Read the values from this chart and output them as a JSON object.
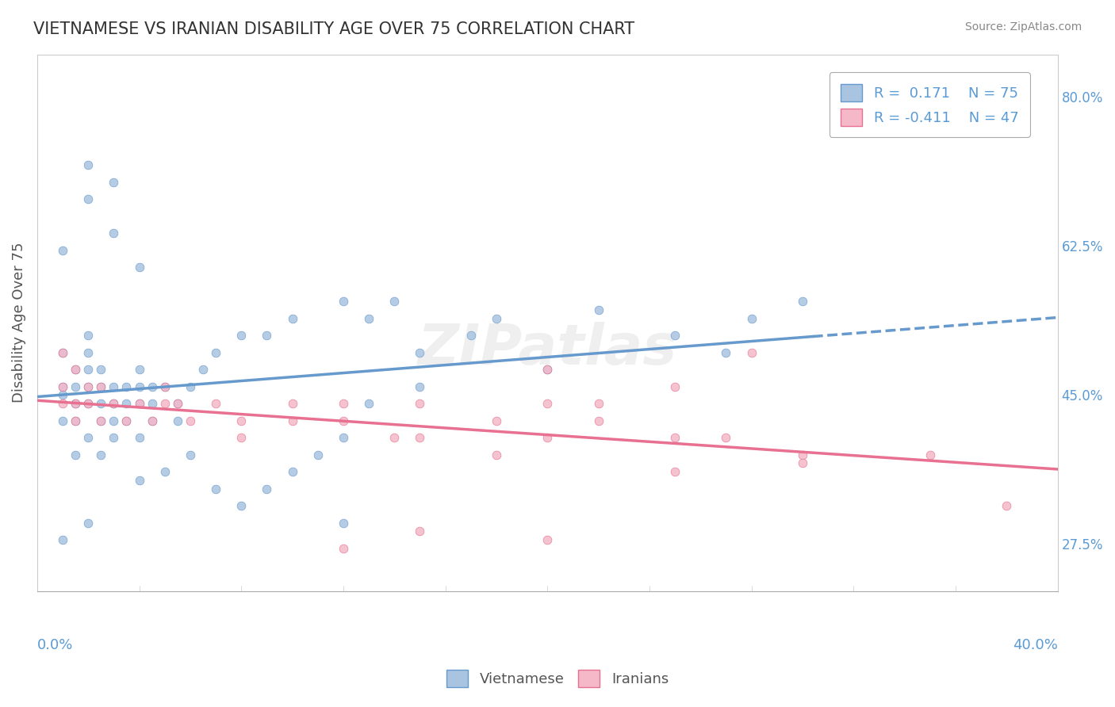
{
  "title": "VIETNAMESE VS IRANIAN DISABILITY AGE OVER 75 CORRELATION CHART",
  "source": "Source: ZipAtlas.com",
  "ylabel": "Disability Age Over 75",
  "ytick_labels": [
    "27.5%",
    "45.0%",
    "62.5%",
    "80.0%"
  ],
  "ytick_values": [
    0.275,
    0.45,
    0.625,
    0.8
  ],
  "xmin": 0.0,
  "xmax": 0.4,
  "ymin": 0.22,
  "ymax": 0.85,
  "viet_color": "#a8c4e0",
  "viet_color_dark": "#6699cc",
  "iran_color": "#f4b8c8",
  "iran_color_dark": "#e87090",
  "legend_viet_R": "0.171",
  "legend_viet_N": "75",
  "legend_iran_R": "-0.411",
  "legend_iran_N": "47",
  "viet_scatter_x": [
    0.01,
    0.01,
    0.01,
    0.01,
    0.015,
    0.015,
    0.015,
    0.015,
    0.015,
    0.02,
    0.02,
    0.02,
    0.02,
    0.02,
    0.02,
    0.025,
    0.025,
    0.025,
    0.025,
    0.025,
    0.03,
    0.03,
    0.03,
    0.03,
    0.035,
    0.035,
    0.035,
    0.04,
    0.04,
    0.04,
    0.04,
    0.045,
    0.045,
    0.045,
    0.05,
    0.055,
    0.055,
    0.06,
    0.065,
    0.07,
    0.08,
    0.09,
    0.1,
    0.12,
    0.13,
    0.14,
    0.15,
    0.17,
    0.18,
    0.22,
    0.04,
    0.05,
    0.06,
    0.07,
    0.08,
    0.09,
    0.1,
    0.11,
    0.12,
    0.13,
    0.15,
    0.2,
    0.25,
    0.28,
    0.3,
    0.27,
    0.12,
    0.02,
    0.02,
    0.03,
    0.03,
    0.04,
    0.01,
    0.01,
    0.02
  ],
  "viet_scatter_y": [
    0.45,
    0.42,
    0.46,
    0.5,
    0.44,
    0.46,
    0.48,
    0.42,
    0.38,
    0.44,
    0.46,
    0.48,
    0.5,
    0.52,
    0.4,
    0.44,
    0.46,
    0.48,
    0.42,
    0.38,
    0.44,
    0.46,
    0.42,
    0.4,
    0.46,
    0.44,
    0.42,
    0.46,
    0.48,
    0.44,
    0.4,
    0.46,
    0.44,
    0.42,
    0.46,
    0.44,
    0.42,
    0.46,
    0.48,
    0.5,
    0.52,
    0.52,
    0.54,
    0.56,
    0.54,
    0.56,
    0.5,
    0.52,
    0.54,
    0.55,
    0.35,
    0.36,
    0.38,
    0.34,
    0.32,
    0.34,
    0.36,
    0.38,
    0.4,
    0.44,
    0.46,
    0.48,
    0.52,
    0.54,
    0.56,
    0.5,
    0.3,
    0.72,
    0.68,
    0.7,
    0.64,
    0.6,
    0.62,
    0.28,
    0.3
  ],
  "iran_scatter_x": [
    0.01,
    0.01,
    0.01,
    0.015,
    0.015,
    0.015,
    0.02,
    0.02,
    0.025,
    0.025,
    0.03,
    0.035,
    0.04,
    0.045,
    0.05,
    0.055,
    0.06,
    0.07,
    0.08,
    0.1,
    0.12,
    0.14,
    0.15,
    0.18,
    0.2,
    0.22,
    0.25,
    0.27,
    0.3,
    0.2,
    0.25,
    0.28,
    0.22,
    0.05,
    0.08,
    0.1,
    0.12,
    0.15,
    0.18,
    0.2,
    0.25,
    0.3,
    0.35,
    0.38,
    0.12,
    0.15,
    0.2
  ],
  "iran_scatter_y": [
    0.5,
    0.46,
    0.44,
    0.48,
    0.44,
    0.42,
    0.46,
    0.44,
    0.46,
    0.42,
    0.44,
    0.42,
    0.44,
    0.42,
    0.46,
    0.44,
    0.42,
    0.44,
    0.42,
    0.44,
    0.42,
    0.4,
    0.44,
    0.42,
    0.44,
    0.42,
    0.4,
    0.4,
    0.38,
    0.48,
    0.46,
    0.5,
    0.44,
    0.44,
    0.4,
    0.42,
    0.44,
    0.4,
    0.38,
    0.4,
    0.36,
    0.37,
    0.38,
    0.32,
    0.27,
    0.29,
    0.28
  ],
  "background_color": "#ffffff",
  "grid_color": "#cccccc",
  "text_color": "#5b9bd5",
  "axis_color": "#cccccc"
}
